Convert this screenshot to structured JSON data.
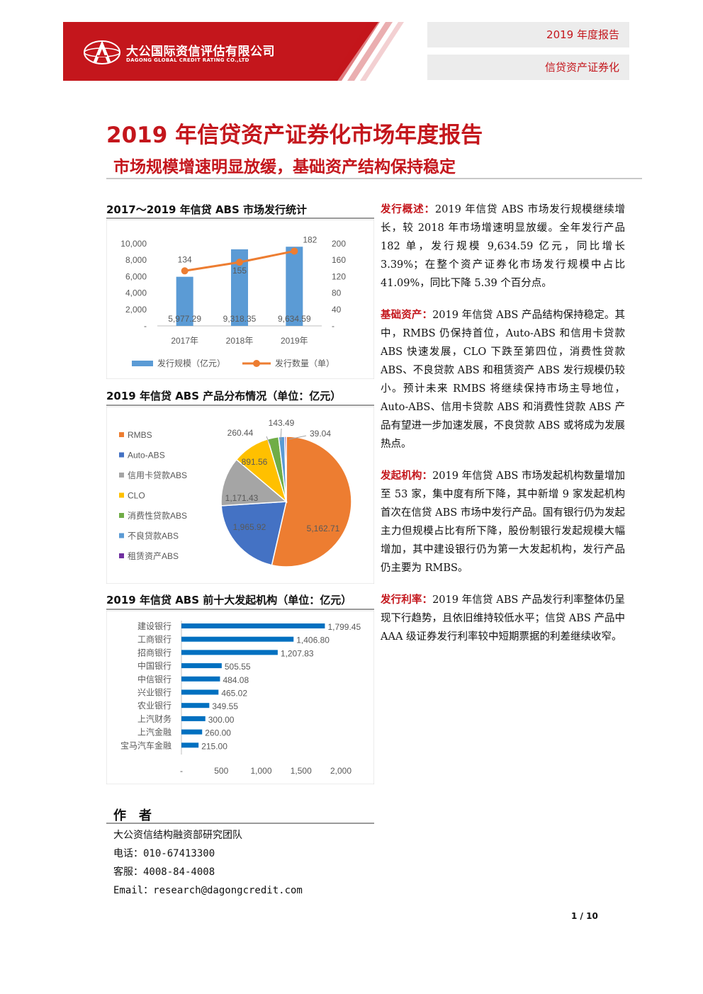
{
  "header": {
    "company_cn": "大公国际资信评估有限公司",
    "company_en": "DAGONG GLOBAL CREDIT RATING CO.,LTD",
    "report_year": "2019 年度报告",
    "report_category": "信贷资产证券化"
  },
  "title": "2019 年信贷资产证券化市场年度报告",
  "subtitle": "市场规模增速明显放缓，基础资产结构保持稳定",
  "chart1": {
    "title": "2017～2019 年信贷 ABS 市场发行统计",
    "chart_data": {
      "type": "bar",
      "categories": [
        "2017年",
        "2018年",
        "2019年"
      ],
      "series": [
        {
          "name": "发行规模（亿元）",
          "type": "bar",
          "values": [
            5977.29,
            9318.35,
            9634.59
          ],
          "labels": [
            "5,977.29",
            "9,318.35",
            "9,634.59"
          ],
          "color": "#5b9bd5"
        },
        {
          "name": "发行数量（单）",
          "type": "line",
          "values": [
            134,
            155,
            182
          ],
          "labels": [
            "134",
            "155",
            "182"
          ],
          "color": "#ed7d31"
        }
      ],
      "y_left_ticks": [
        "10,000",
        "8,000",
        "6,000",
        "4,000",
        "2,000",
        "-"
      ],
      "y_left_lim": [
        0,
        10000
      ],
      "y_right_ticks": [
        "200",
        "160",
        "120",
        "80",
        "40",
        "-"
      ],
      "y_right_lim": [
        0,
        200
      ],
      "grid": false,
      "legend": "bottom"
    }
  },
  "chart2": {
    "title": "2019 年信贷 ABS 产品分布情况（单位：亿元）",
    "chart_data": {
      "type": "pie",
      "slices": [
        {
          "name": "RMBS",
          "value": 5162.71,
          "label": "5,162.71",
          "color": "#ed7d31"
        },
        {
          "name": "Auto-ABS",
          "value": 1965.92,
          "label": "1,965.92",
          "color": "#4472c4"
        },
        {
          "name": "信用卡贷款ABS",
          "value": 1171.43,
          "label": "1,171.43",
          "color": "#a5a5a5"
        },
        {
          "name": "CLO",
          "value": 891.56,
          "label": "891.56",
          "color": "#ffc000"
        },
        {
          "name": "消费性贷款ABS",
          "value": 260.44,
          "label": "260.44",
          "color": "#70ad47"
        },
        {
          "name": "不良贷款ABS",
          "value": 143.49,
          "label": "143.49",
          "color": "#5b9bd5"
        },
        {
          "name": "租赁资产ABS",
          "value": 39.04,
          "label": "39.04",
          "color": "#7030a0"
        }
      ],
      "legend": "left"
    }
  },
  "chart3": {
    "title": "2019 年信贷 ABS 前十大发起机构（单位：亿元）",
    "chart_data": {
      "type": "bar",
      "orientation": "horizontal",
      "categories": [
        "建设银行",
        "工商银行",
        "招商银行",
        "中国银行",
        "中信银行",
        "兴业银行",
        "农业银行",
        "上汽财务",
        "上汽金融",
        "宝马汽车金融"
      ],
      "values": [
        1799.45,
        1406.8,
        1207.83,
        505.55,
        484.08,
        465.02,
        349.55,
        300.0,
        260.0,
        215.0
      ],
      "labels": [
        "1,799.45",
        "1,406.80",
        "1,207.83",
        "505.55",
        "484.08",
        "465.02",
        "349.55",
        "300.00",
        "260.00",
        "215.00"
      ],
      "x_ticks": [
        "-",
        "500",
        "1,000",
        "1,500",
        "2,000"
      ],
      "xlim": [
        0,
        2000
      ],
      "color": "#0070c0"
    }
  },
  "paragraphs": [
    {
      "lead": "发行概述：",
      "text": "2019 年信贷 ABS 市场发行规模继续增长，较 2018 年市场增速明显放缓。全年发行产品 182 单，发行规模 9,634.59 亿元，同比增长 3.39%；在整个资产证券化市场发行规模中占比 41.09%，同比下降 5.39 个百分点。"
    },
    {
      "lead": "基础资产：",
      "text": "2019 年信贷 ABS 产品结构保持稳定。其中，RMBS 仍保持首位，Auto-ABS 和信用卡贷款 ABS 快速发展，CLO 下跌至第四位，消费性贷款 ABS、不良贷款 ABS 和租赁资产 ABS 发行规模仍较小。预计未来 RMBS 将继续保持市场主导地位，Auto-ABS、信用卡贷款 ABS 和消费性贷款 ABS 产品有望进一步加速发展，不良贷款 ABS 或将成为发展热点。"
    },
    {
      "lead": "发起机构：",
      "text": "2019 年信贷 ABS 市场发起机构数量增加至 53 家，集中度有所下降，其中新增 9 家发起机构首次在信贷 ABS 市场中发行产品。国有银行仍为发起主力但规模占比有所下降，股份制银行发起规模大幅增加，其中建设银行仍为第一大发起机构，发行产品仍主要为 RMBS。"
    },
    {
      "lead": "发行利率：",
      "text": "2019 年信贷 ABS 产品发行利率整体仍呈现下行趋势，且依旧维持较低水平；信贷 ABS 产品中 AAA 级证券发行利率较中短期票据的利差继续收窄。"
    }
  ],
  "author": {
    "heading": "作　者",
    "team": "大公资信结构融资部研究团队",
    "phone": "电话：010-67413300",
    "service": "客服：4008-84-4008",
    "email": "Email：research@dagongcredit.com"
  },
  "page_number": "1 / 10"
}
